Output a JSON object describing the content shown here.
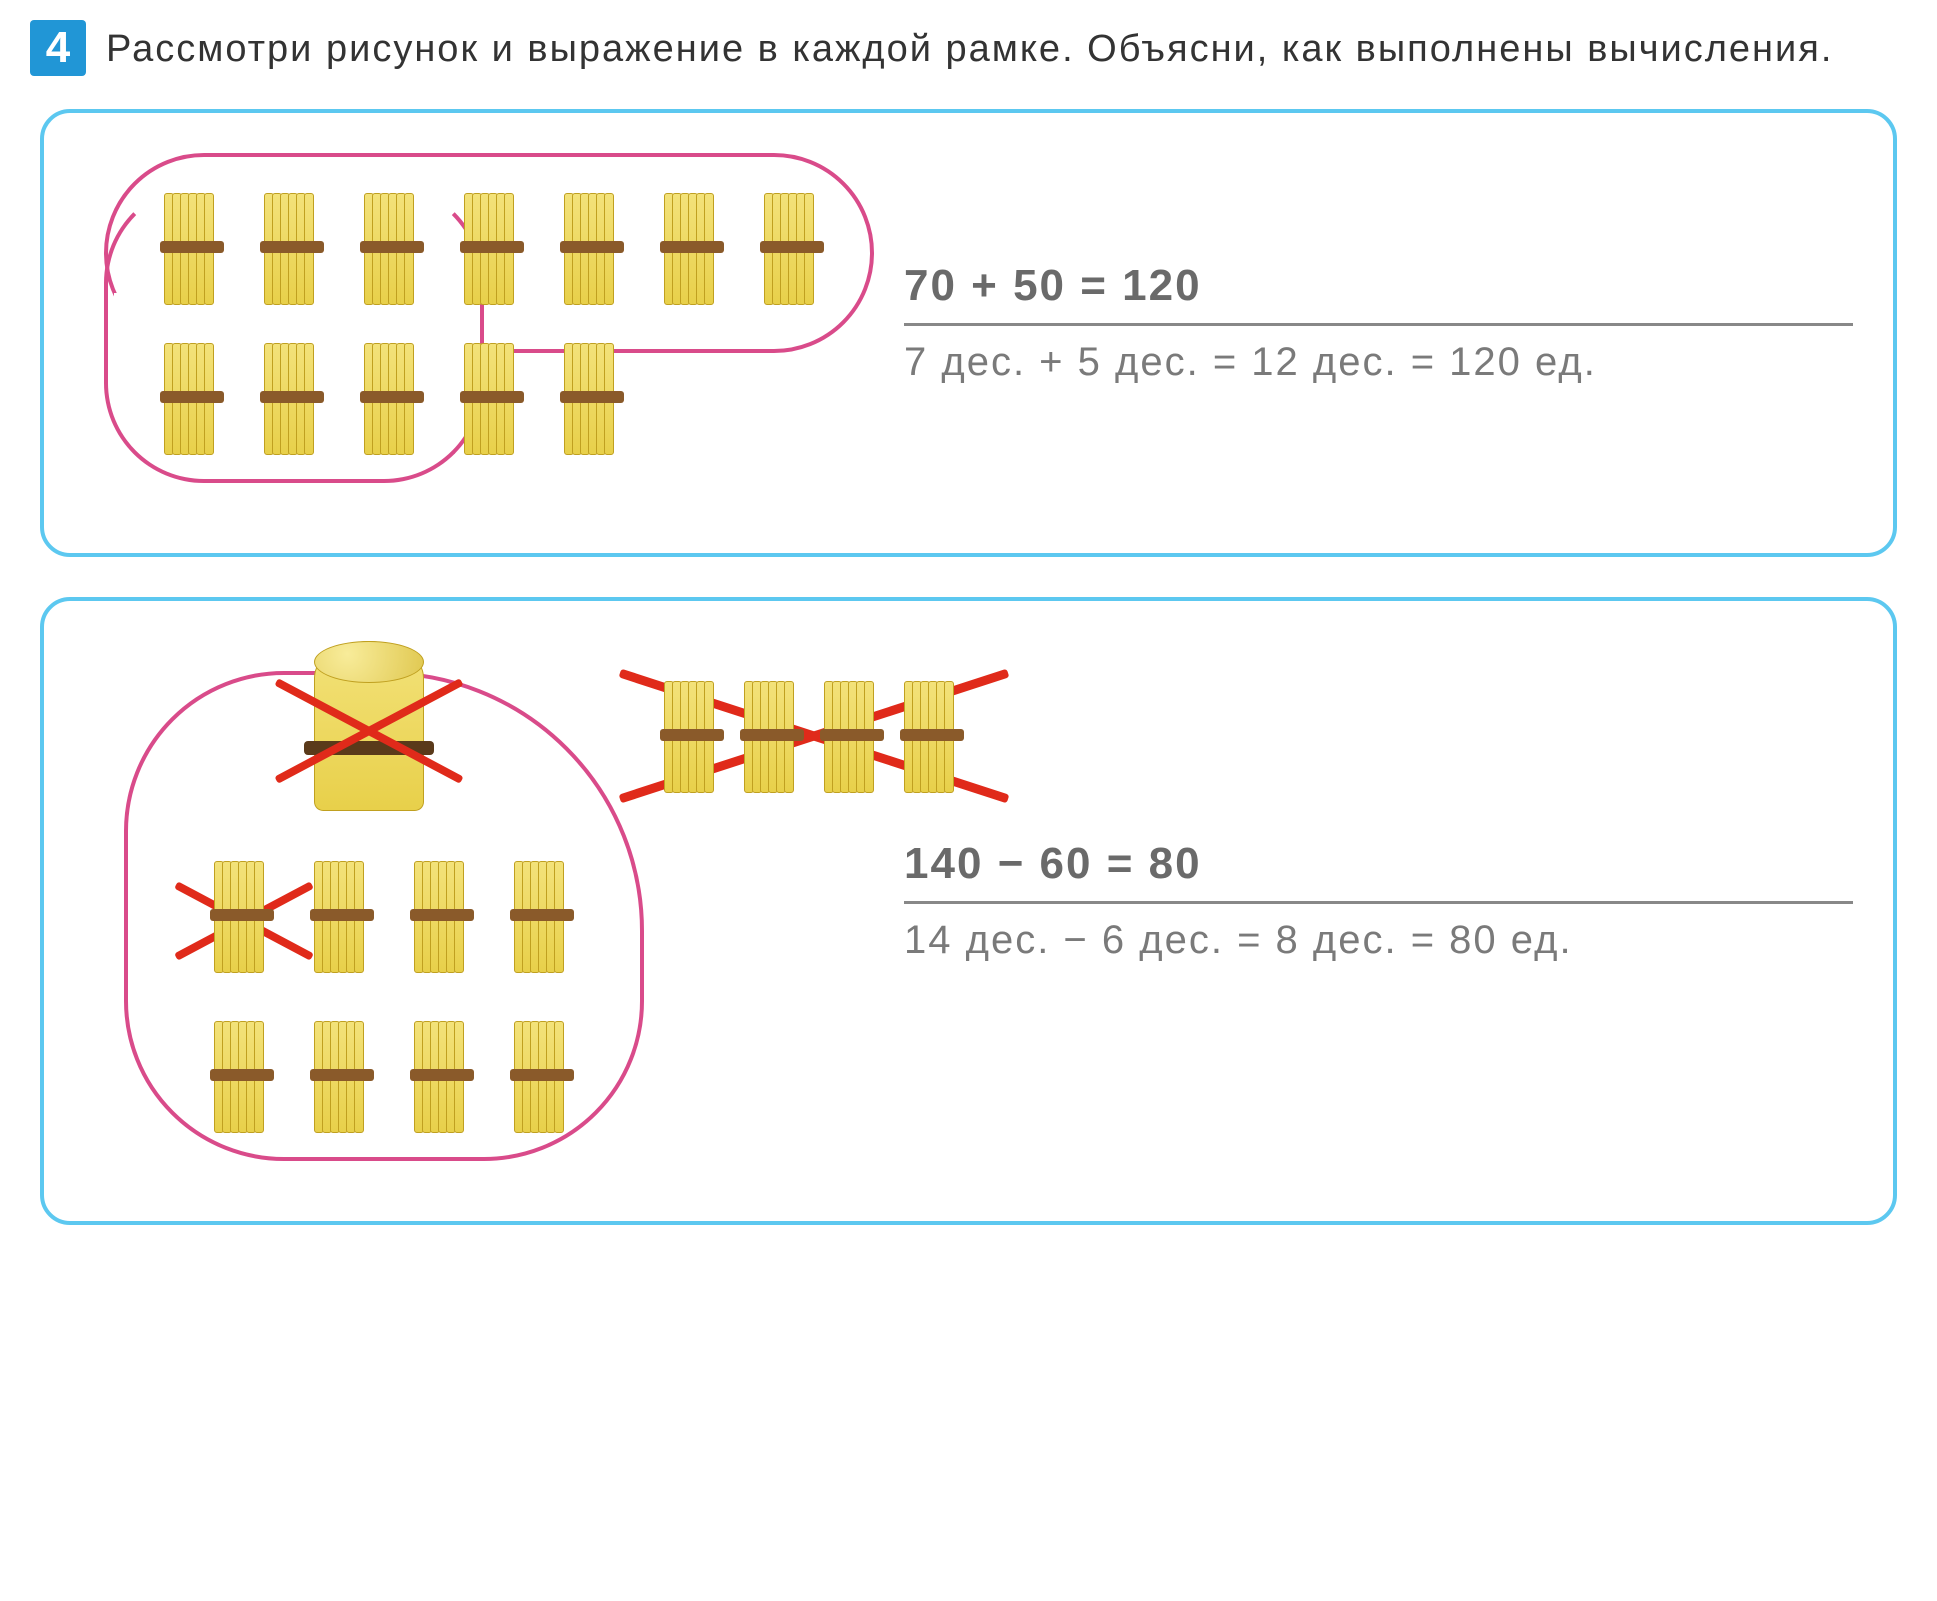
{
  "task": {
    "number": "4",
    "text": "Рассмотри рисунок и выражение в каждой рамке. Объясни, как выполнены вычисления."
  },
  "colors": {
    "frame_border": "#5cc8f0",
    "task_badge_bg": "#2196d6",
    "loop_color": "#d94b8a",
    "cross_color": "#e02a1a",
    "bundle_fill_top": "#f3e27a",
    "bundle_fill_bottom": "#e8d04a",
    "bundle_border": "#c0a020",
    "bundle_band": "#8a5a2a",
    "text_color": "#6a6a6a"
  },
  "frame1": {
    "illustration": {
      "type": "counting-bundles",
      "bundles_row1": 7,
      "bundles_row2": 5,
      "loop_description": "pink loop around all 7 top bundles and first 3 of bottom row",
      "bundle_value": 10
    },
    "equation_main": "70 + 50 = 120",
    "equation_sub": "7 дес. + 5 дес. = 12 дес. = 120 ед."
  },
  "frame2": {
    "illustration": {
      "type": "counting-bundles-subtraction",
      "big_bundle": 1,
      "big_bundle_value": 100,
      "side_bundles": 4,
      "rows_below": [
        4,
        4
      ],
      "crossed": {
        "big_bundle": true,
        "side_group": true,
        "below_first_of_row1": true
      }
    },
    "equation_main": "140 − 60 = 80",
    "equation_sub": "14 дес. − 6 дес. = 8 дес. = 80 ед."
  }
}
